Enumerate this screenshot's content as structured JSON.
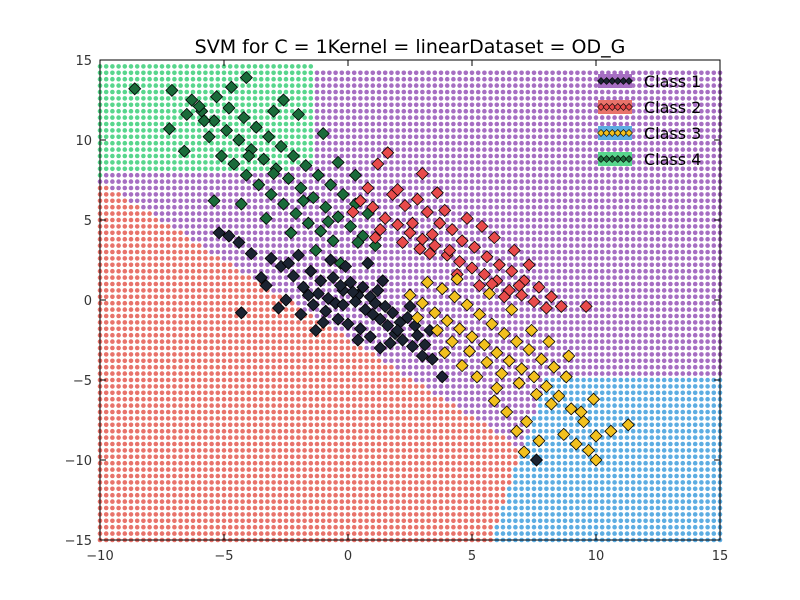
{
  "chart_data": {
    "type": "scatter",
    "title": "SVM for C = 1Kernel = linearDataset = OD_G",
    "xlabel": "",
    "ylabel": "",
    "xlim": [
      -10,
      15
    ],
    "ylim": [
      -15,
      15
    ],
    "xticks": [
      -10,
      -5,
      0,
      5,
      10,
      15
    ],
    "yticks": [
      -15,
      -10,
      -5,
      0,
      5,
      10,
      15
    ],
    "xtick_labels": [
      "−10",
      "−5",
      "0",
      "5",
      "10",
      "15"
    ],
    "ytick_labels": [
      "−15",
      "−10",
      "−5",
      "0",
      "5",
      "10",
      "15"
    ],
    "grid": false,
    "legend_position": "top-right",
    "background_grid": {
      "x_step": 0.25,
      "y_step": 0.4,
      "note_regions": [
        {
          "class": "Class 1",
          "color": "#a66ec2"
        },
        {
          "class": "Class 2",
          "color": "#e8736b"
        },
        {
          "class": "Class 3",
          "color": "#5dade2"
        },
        {
          "class": "Class 4",
          "color": "#58d68d"
        }
      ]
    },
    "series": [
      {
        "name": "Class 1",
        "color": "#1b2331",
        "region_color": "#a66ec2",
        "points": [
          [
            -2.7,
            2.1
          ],
          [
            -2.2,
            1.5
          ],
          [
            -1.8,
            0.8
          ],
          [
            -1.2,
            0.4
          ],
          [
            -0.8,
            0.1
          ],
          [
            -0.5,
            -0.2
          ],
          [
            -0.2,
            0.6
          ],
          [
            0.1,
            1.1
          ],
          [
            0.4,
            0.3
          ],
          [
            0.7,
            -0.6
          ],
          [
            1.0,
            -0.9
          ],
          [
            1.3,
            -1.2
          ],
          [
            1.6,
            -1.6
          ],
          [
            1.9,
            -2.1
          ],
          [
            2.2,
            -2.5
          ],
          [
            2.6,
            -2.9
          ],
          [
            3.0,
            -3.5
          ],
          [
            3.4,
            -3.7
          ],
          [
            -3.9,
            2.9
          ],
          [
            -4.4,
            3.6
          ],
          [
            -3.1,
            2.6
          ],
          [
            -2.4,
            2.3
          ],
          [
            -1.5,
            1.8
          ],
          [
            -1.1,
            1.2
          ],
          [
            -0.6,
            1.4
          ],
          [
            -0.3,
            0.9
          ],
          [
            0.3,
            -0.1
          ],
          [
            0.6,
            0.8
          ],
          [
            0.9,
            0.2
          ],
          [
            1.2,
            0.6
          ],
          [
            1.5,
            -0.4
          ],
          [
            1.8,
            -0.8
          ],
          [
            2.1,
            -1.4
          ],
          [
            2.4,
            -1.1
          ],
          [
            2.8,
            -2.2
          ],
          [
            3.1,
            -2.8
          ],
          [
            -1.4,
            -0.3
          ],
          [
            -0.9,
            -0.7
          ],
          [
            -0.4,
            -1.2
          ],
          [
            0.0,
            -1.5
          ],
          [
            0.5,
            -1.8
          ],
          [
            -4.8,
            4.0
          ],
          [
            -5.2,
            4.2
          ],
          [
            -3.5,
            1.4
          ],
          [
            -4.3,
            -0.8
          ],
          [
            -2.8,
            -0.5
          ],
          [
            -1.9,
            -0.9
          ],
          [
            1.3,
            -3.0
          ],
          [
            7.6,
            -10.0
          ],
          [
            -0.1,
            2.1
          ],
          [
            0.8,
            2.3
          ],
          [
            -1.6,
            0.3
          ],
          [
            -0.2,
            -0.3
          ],
          [
            0.2,
            0.5
          ],
          [
            1.1,
            -0.2
          ],
          [
            2.0,
            -1.9
          ],
          [
            2.7,
            -1.6
          ],
          [
            -1.0,
            -1.4
          ],
          [
            0.4,
            -2.5
          ],
          [
            1.7,
            -2.7
          ],
          [
            -2.5,
            0.0
          ],
          [
            -3.3,
            0.9
          ],
          [
            -2.0,
            2.8
          ],
          [
            -0.7,
            2.5
          ],
          [
            1.4,
            1.2
          ],
          [
            2.5,
            -0.4
          ],
          [
            3.3,
            -1.9
          ],
          [
            -1.3,
            -1.9
          ],
          [
            0.9,
            -2.3
          ],
          [
            3.8,
            -4.8
          ]
        ]
      },
      {
        "name": "Class 2",
        "color": "#e84b4b",
        "region_color": "#e8736b",
        "points": [
          [
            0.5,
            6.2
          ],
          [
            1.0,
            5.8
          ],
          [
            1.5,
            5.1
          ],
          [
            2.0,
            4.7
          ],
          [
            2.5,
            4.2
          ],
          [
            3.0,
            3.8
          ],
          [
            3.5,
            3.4
          ],
          [
            4.0,
            2.8
          ],
          [
            4.5,
            2.4
          ],
          [
            5.0,
            2.0
          ],
          [
            5.5,
            1.6
          ],
          [
            6.0,
            1.2
          ],
          [
            6.5,
            0.6
          ],
          [
            7.0,
            0.3
          ],
          [
            7.5,
            -0.1
          ],
          [
            8.0,
            -0.5
          ],
          [
            8.6,
            -0.4
          ],
          [
            9.6,
            -0.4
          ],
          [
            1.2,
            8.5
          ],
          [
            1.6,
            9.2
          ],
          [
            3.0,
            7.9
          ],
          [
            0.8,
            7.0
          ],
          [
            1.8,
            6.6
          ],
          [
            2.3,
            5.9
          ],
          [
            2.8,
            6.3
          ],
          [
            3.2,
            5.5
          ],
          [
            3.7,
            4.8
          ],
          [
            4.2,
            4.4
          ],
          [
            4.6,
            3.7
          ],
          [
            5.1,
            3.3
          ],
          [
            5.6,
            2.7
          ],
          [
            6.1,
            2.2
          ],
          [
            6.6,
            1.8
          ],
          [
            7.1,
            1.2
          ],
          [
            1.3,
            4.4
          ],
          [
            2.2,
            3.6
          ],
          [
            3.3,
            2.9
          ],
          [
            4.4,
            1.6
          ],
          [
            5.3,
            0.9
          ],
          [
            6.3,
            0.2
          ],
          [
            0.2,
            5.5
          ],
          [
            1.1,
            3.9
          ],
          [
            2.6,
            4.8
          ],
          [
            3.9,
            5.6
          ],
          [
            5.4,
            4.6
          ],
          [
            6.7,
            3.1
          ],
          [
            7.3,
            2.2
          ],
          [
            4.8,
            5.1
          ],
          [
            3.6,
            6.7
          ],
          [
            2.0,
            6.9
          ],
          [
            5.9,
            3.9
          ],
          [
            6.9,
            0.9
          ],
          [
            7.7,
            0.8
          ],
          [
            8.2,
            0.2
          ],
          [
            2.9,
            3.2
          ],
          [
            4.1,
            3.1
          ],
          [
            5.8,
            1.0
          ],
          [
            3.4,
            4.1
          ]
        ]
      },
      {
        "name": "Class 3",
        "color": "#f2c01e",
        "region_color": "#5dade2",
        "points": [
          [
            2.5,
            0.3
          ],
          [
            3.0,
            -0.2
          ],
          [
            3.5,
            -0.8
          ],
          [
            4.0,
            -1.3
          ],
          [
            4.5,
            -1.8
          ],
          [
            5.0,
            -2.3
          ],
          [
            5.5,
            -2.8
          ],
          [
            6.0,
            -3.3
          ],
          [
            6.5,
            -3.8
          ],
          [
            7.0,
            -4.3
          ],
          [
            7.5,
            -4.8
          ],
          [
            8.0,
            -5.4
          ],
          [
            8.5,
            -6.0
          ],
          [
            9.0,
            -6.8
          ],
          [
            9.5,
            -7.6
          ],
          [
            10.0,
            -8.5
          ],
          [
            10.6,
            -8.2
          ],
          [
            11.3,
            -7.8
          ],
          [
            3.2,
            1.1
          ],
          [
            3.8,
            0.7
          ],
          [
            4.3,
            0.2
          ],
          [
            4.8,
            -0.3
          ],
          [
            5.3,
            -0.9
          ],
          [
            5.8,
            -1.5
          ],
          [
            6.3,
            -2.1
          ],
          [
            6.8,
            -2.6
          ],
          [
            7.3,
            -3.1
          ],
          [
            7.8,
            -3.7
          ],
          [
            8.3,
            -4.2
          ],
          [
            8.8,
            -4.8
          ],
          [
            2.8,
            -1.1
          ],
          [
            3.6,
            -1.9
          ],
          [
            4.2,
            -2.6
          ],
          [
            4.9,
            -3.2
          ],
          [
            5.6,
            -3.9
          ],
          [
            6.2,
            -4.6
          ],
          [
            6.9,
            -5.2
          ],
          [
            7.6,
            -5.9
          ],
          [
            8.2,
            -6.5
          ],
          [
            5.9,
            -6.3
          ],
          [
            6.4,
            -7.0
          ],
          [
            7.2,
            -7.6
          ],
          [
            8.7,
            -8.4
          ],
          [
            9.2,
            -9.0
          ],
          [
            10.0,
            -10.0
          ],
          [
            7.1,
            -9.5
          ],
          [
            6.8,
            -8.2
          ],
          [
            9.4,
            -7.0
          ],
          [
            9.9,
            -6.2
          ],
          [
            8.9,
            -3.5
          ],
          [
            4.6,
            -4.1
          ],
          [
            5.2,
            -4.8
          ],
          [
            3.9,
            -3.3
          ],
          [
            4.4,
            1.3
          ],
          [
            5.7,
            0.4
          ],
          [
            6.6,
            -0.6
          ],
          [
            7.4,
            -1.9
          ],
          [
            8.1,
            -2.6
          ],
          [
            6.0,
            -5.5
          ],
          [
            7.7,
            -8.8
          ],
          [
            9.7,
            -9.4
          ]
        ]
      },
      {
        "name": "Class 4",
        "color": "#1a6b3a",
        "region_color": "#58d68d",
        "points": [
          [
            -8.6,
            13.2
          ],
          [
            -7.1,
            13.1
          ],
          [
            -6.3,
            12.5
          ],
          [
            -5.9,
            11.8
          ],
          [
            -5.4,
            11.2
          ],
          [
            -4.9,
            10.6
          ],
          [
            -4.4,
            10.0
          ],
          [
            -3.9,
            9.4
          ],
          [
            -3.4,
            8.8
          ],
          [
            -2.9,
            8.2
          ],
          [
            -2.4,
            7.6
          ],
          [
            -1.9,
            7.0
          ],
          [
            -1.4,
            6.4
          ],
          [
            -0.9,
            5.8
          ],
          [
            -0.4,
            5.2
          ],
          [
            0.1,
            4.6
          ],
          [
            0.6,
            4.0
          ],
          [
            1.1,
            3.4
          ],
          [
            -4.1,
            13.9
          ],
          [
            -4.7,
            13.3
          ],
          [
            -2.6,
            12.5
          ],
          [
            -7.2,
            10.7
          ],
          [
            -6.6,
            9.3
          ],
          [
            -5.6,
            10.2
          ],
          [
            -5.1,
            9.0
          ],
          [
            -4.6,
            8.5
          ],
          [
            -4.1,
            7.8
          ],
          [
            -3.6,
            7.2
          ],
          [
            -3.1,
            6.6
          ],
          [
            -2.6,
            6.0
          ],
          [
            -2.1,
            5.4
          ],
          [
            -1.6,
            4.8
          ],
          [
            -1.1,
            4.3
          ],
          [
            -0.6,
            3.7
          ],
          [
            -6.0,
            12.1
          ],
          [
            -5.3,
            12.7
          ],
          [
            -4.8,
            12.0
          ],
          [
            -4.2,
            11.4
          ],
          [
            -3.7,
            10.8
          ],
          [
            -3.2,
            10.2
          ],
          [
            -2.7,
            9.6
          ],
          [
            -2.2,
            9.0
          ],
          [
            -1.7,
            8.4
          ],
          [
            -1.2,
            7.8
          ],
          [
            -0.7,
            7.2
          ],
          [
            -0.2,
            6.6
          ],
          [
            0.3,
            6.0
          ],
          [
            0.8,
            5.4
          ],
          [
            -1.0,
            10.4
          ],
          [
            -0.4,
            8.6
          ],
          [
            0.3,
            7.8
          ],
          [
            -5.4,
            6.2
          ],
          [
            -4.3,
            6.0
          ],
          [
            -3.3,
            5.1
          ],
          [
            -2.3,
            4.2
          ],
          [
            -1.3,
            3.1
          ],
          [
            -0.3,
            2.3
          ],
          [
            -2.0,
            11.6
          ],
          [
            -3.0,
            11.8
          ],
          [
            -5.8,
            11.2
          ],
          [
            -6.5,
            11.6
          ],
          [
            -4.0,
            9.0
          ],
          [
            -3.0,
            7.9
          ],
          [
            -1.8,
            6.2
          ],
          [
            -0.8,
            4.9
          ],
          [
            0.4,
            3.6
          ]
        ]
      }
    ]
  }
}
